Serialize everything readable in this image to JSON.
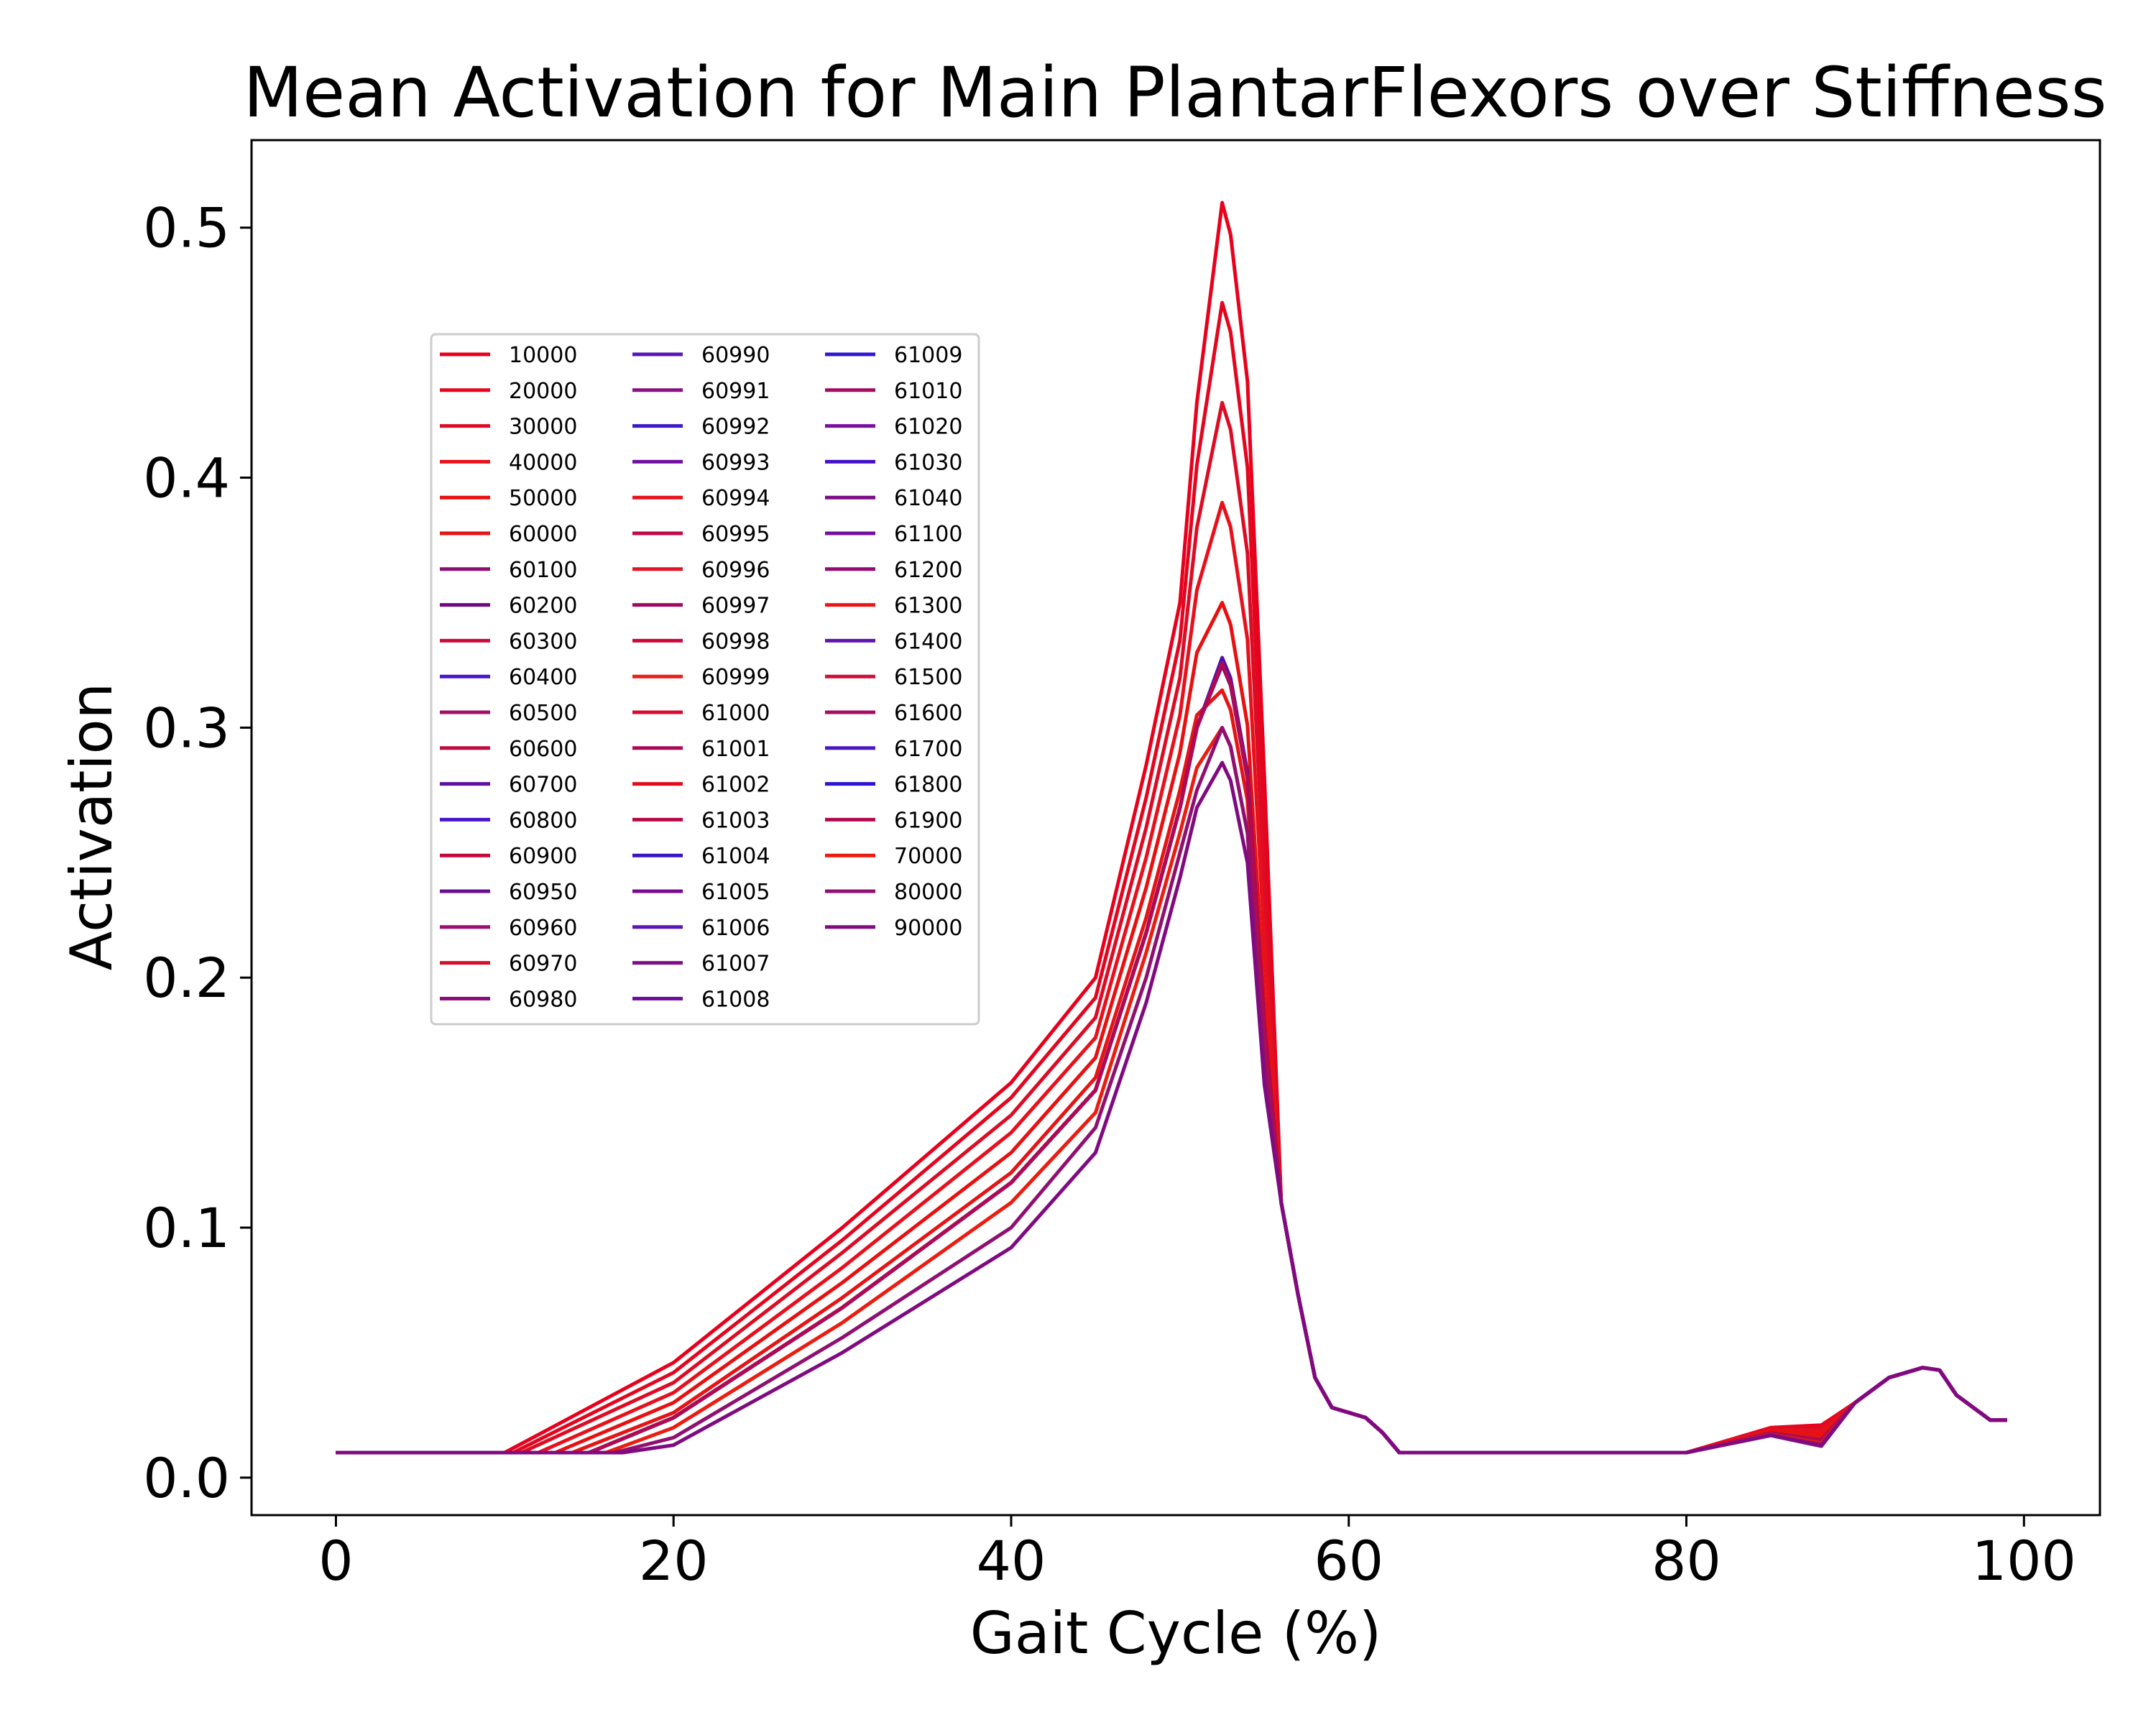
{
  "chart_data": {
    "type": "line",
    "title": "Mean Activation for Main PlantarFlexors over Stiffness",
    "xlabel": "Gait Cycle (%)",
    "ylabel": "Activation",
    "xlim": [
      -5,
      104.5
    ],
    "ylim": [
      -0.015,
      0.535
    ],
    "xticks": [
      "0",
      "20",
      "40",
      "60",
      "80",
      "100"
    ],
    "yticks": [
      "0.0",
      "0.1",
      "0.2",
      "0.3",
      "0.4",
      "0.5"
    ],
    "grid": false,
    "legend_position": "upper-left",
    "x": [
      0,
      10,
      15,
      20,
      30,
      40,
      45,
      48,
      50,
      51,
      52,
      52.5,
      53,
      54,
      55,
      56,
      57,
      58,
      59,
      60,
      61,
      62,
      63,
      64,
      65,
      80,
      85,
      88,
      90,
      92,
      94,
      95,
      96,
      98,
      99,
      99.5
    ],
    "common_tail": [
      0.15,
      0.11,
      0.073,
      0.04,
      0.028,
      0.026,
      0.024,
      0.018,
      0.01,
      0.01,
      0.01,
      0.01,
      0.011,
      0.016,
      0.03,
      0.04,
      0.044,
      0.043,
      0.033,
      0.023,
      0.023
    ],
    "series": [
      {
        "name": "10000",
        "color": "#e8001c",
        "rise_start": 10,
        "v20": 0.046,
        "v30": 0.1,
        "v40": 0.158,
        "v45": 0.2,
        "v48": 0.285,
        "v50": 0.35,
        "v51": 0.43,
        "peak": 0.51
      },
      {
        "name": "20000",
        "color": "#e3061f",
        "rise_start": 10.5,
        "v20": 0.042,
        "v30": 0.095,
        "v40": 0.152,
        "v45": 0.192,
        "v48": 0.272,
        "v50": 0.335,
        "v51": 0.405,
        "peak": 0.47
      },
      {
        "name": "30000",
        "color": "#dd0c25",
        "rise_start": 11,
        "v20": 0.038,
        "v30": 0.09,
        "v40": 0.145,
        "v45": 0.184,
        "v48": 0.26,
        "v50": 0.32,
        "v51": 0.38,
        "peak": 0.43
      },
      {
        "name": "40000",
        "color": "#e8101c",
        "rise_start": 12,
        "v20": 0.034,
        "v30": 0.084,
        "v40": 0.138,
        "v45": 0.176,
        "v48": 0.248,
        "v50": 0.305,
        "v51": 0.355,
        "peak": 0.39
      },
      {
        "name": "50000",
        "color": "#e81010",
        "rise_start": 13,
        "v20": 0.03,
        "v30": 0.078,
        "v40": 0.13,
        "v45": 0.168,
        "v48": 0.236,
        "v50": 0.29,
        "v51": 0.33,
        "peak": 0.35
      },
      {
        "name": "60000",
        "color": "#e61414",
        "rise_start": 14,
        "v20": 0.026,
        "v30": 0.072,
        "v40": 0.122,
        "v45": 0.16,
        "v48": 0.224,
        "v50": 0.275,
        "v51": 0.305,
        "peak": 0.315
      },
      {
        "name": "60100",
        "color": "#8a1070",
        "rise_start": 15,
        "v20": 0.024,
        "v30": 0.068,
        "v40": 0.118,
        "v45": 0.155,
        "v48": 0.218,
        "v50": 0.268,
        "v51": 0.3,
        "peak": 0.326
      },
      {
        "name": "60200",
        "color": "#700a80",
        "rise_start": 15,
        "v20": 0.024,
        "v30": 0.068,
        "v40": 0.118,
        "v45": 0.155,
        "v48": 0.218,
        "v50": 0.268,
        "v51": 0.3,
        "peak": 0.325
      },
      {
        "name": "60300",
        "color": "#cc0a3a",
        "rise_start": 15,
        "v20": 0.024,
        "v30": 0.068,
        "v40": 0.118,
        "v45": 0.155,
        "v48": 0.218,
        "v50": 0.268,
        "v51": 0.3,
        "peak": 0.327
      },
      {
        "name": "60400",
        "color": "#4a18c8",
        "rise_start": 15,
        "v20": 0.024,
        "v30": 0.068,
        "v40": 0.118,
        "v45": 0.155,
        "v48": 0.218,
        "v50": 0.268,
        "v51": 0.3,
        "peak": 0.326
      },
      {
        "name": "60500",
        "color": "#a01068",
        "rise_start": 15,
        "v20": 0.024,
        "v30": 0.068,
        "v40": 0.118,
        "v45": 0.155,
        "v48": 0.218,
        "v50": 0.268,
        "v51": 0.3,
        "peak": 0.327
      },
      {
        "name": "60600",
        "color": "#c00a40",
        "rise_start": 15,
        "v20": 0.024,
        "v30": 0.068,
        "v40": 0.118,
        "v45": 0.155,
        "v48": 0.218,
        "v50": 0.268,
        "v51": 0.3,
        "peak": 0.326
      },
      {
        "name": "60700",
        "color": "#6010a0",
        "rise_start": 15,
        "v20": 0.024,
        "v30": 0.068,
        "v40": 0.118,
        "v45": 0.155,
        "v48": 0.218,
        "v50": 0.268,
        "v51": 0.3,
        "peak": 0.328
      },
      {
        "name": "60800",
        "color": "#4814cc",
        "rise_start": 15,
        "v20": 0.024,
        "v30": 0.068,
        "v40": 0.118,
        "v45": 0.155,
        "v48": 0.218,
        "v50": 0.268,
        "v51": 0.3,
        "peak": 0.326
      },
      {
        "name": "60900",
        "color": "#c4083a",
        "rise_start": 15,
        "v20": 0.024,
        "v30": 0.068,
        "v40": 0.118,
        "v45": 0.155,
        "v48": 0.218,
        "v50": 0.268,
        "v51": 0.3,
        "peak": 0.327
      },
      {
        "name": "60950",
        "color": "#680c90",
        "rise_start": 15,
        "v20": 0.024,
        "v30": 0.068,
        "v40": 0.118,
        "v45": 0.155,
        "v48": 0.218,
        "v50": 0.268,
        "v51": 0.3,
        "peak": 0.326
      },
      {
        "name": "60960",
        "color": "#9a1070",
        "rise_start": 15,
        "v20": 0.024,
        "v30": 0.068,
        "v40": 0.118,
        "v45": 0.155,
        "v48": 0.218,
        "v50": 0.268,
        "v51": 0.3,
        "peak": 0.327
      },
      {
        "name": "60970",
        "color": "#d4102a",
        "rise_start": 15,
        "v20": 0.024,
        "v30": 0.068,
        "v40": 0.118,
        "v45": 0.155,
        "v48": 0.218,
        "v50": 0.268,
        "v51": 0.3,
        "peak": 0.326
      },
      {
        "name": "60980",
        "color": "#880a78",
        "rise_start": 15,
        "v20": 0.024,
        "v30": 0.068,
        "v40": 0.118,
        "v45": 0.155,
        "v48": 0.218,
        "v50": 0.268,
        "v51": 0.3,
        "peak": 0.327
      },
      {
        "name": "60990",
        "color": "#5a14b8",
        "rise_start": 15,
        "v20": 0.024,
        "v30": 0.068,
        "v40": 0.118,
        "v45": 0.155,
        "v48": 0.218,
        "v50": 0.268,
        "v51": 0.3,
        "peak": 0.326
      },
      {
        "name": "60991",
        "color": "#881080",
        "rise_start": 15,
        "v20": 0.024,
        "v30": 0.068,
        "v40": 0.118,
        "v45": 0.155,
        "v48": 0.218,
        "v50": 0.268,
        "v51": 0.3,
        "peak": 0.327
      },
      {
        "name": "60992",
        "color": "#3c18c8",
        "rise_start": 15,
        "v20": 0.024,
        "v30": 0.068,
        "v40": 0.118,
        "v45": 0.155,
        "v48": 0.218,
        "v50": 0.268,
        "v51": 0.3,
        "peak": 0.326
      },
      {
        "name": "60993",
        "color": "#7010a0",
        "rise_start": 15,
        "v20": 0.024,
        "v30": 0.068,
        "v40": 0.118,
        "v45": 0.155,
        "v48": 0.218,
        "v50": 0.268,
        "v51": 0.3,
        "peak": 0.327
      },
      {
        "name": "60994",
        "color": "#e8141c",
        "rise_start": 15,
        "v20": 0.024,
        "v30": 0.068,
        "v40": 0.118,
        "v45": 0.155,
        "v48": 0.218,
        "v50": 0.268,
        "v51": 0.3,
        "peak": 0.326
      },
      {
        "name": "60995",
        "color": "#c00a48",
        "rise_start": 15,
        "v20": 0.024,
        "v30": 0.068,
        "v40": 0.118,
        "v45": 0.155,
        "v48": 0.218,
        "v50": 0.268,
        "v51": 0.3,
        "peak": 0.327
      },
      {
        "name": "60996",
        "color": "#e01424",
        "rise_start": 15,
        "v20": 0.024,
        "v30": 0.068,
        "v40": 0.118,
        "v45": 0.155,
        "v48": 0.218,
        "v50": 0.268,
        "v51": 0.3,
        "peak": 0.326
      },
      {
        "name": "60997",
        "color": "#a00a60",
        "rise_start": 15,
        "v20": 0.024,
        "v30": 0.068,
        "v40": 0.118,
        "v45": 0.155,
        "v48": 0.218,
        "v50": 0.268,
        "v51": 0.3,
        "peak": 0.327
      },
      {
        "name": "60998",
        "color": "#cc0838",
        "rise_start": 15,
        "v20": 0.024,
        "v30": 0.068,
        "v40": 0.118,
        "v45": 0.155,
        "v48": 0.218,
        "v50": 0.268,
        "v51": 0.3,
        "peak": 0.326
      },
      {
        "name": "60999",
        "color": "#ec2018",
        "rise_start": 15,
        "v20": 0.024,
        "v30": 0.068,
        "v40": 0.118,
        "v45": 0.155,
        "v48": 0.218,
        "v50": 0.268,
        "v51": 0.3,
        "peak": 0.327
      },
      {
        "name": "61000",
        "color": "#d80c30",
        "rise_start": 15,
        "v20": 0.024,
        "v30": 0.068,
        "v40": 0.118,
        "v45": 0.155,
        "v48": 0.218,
        "v50": 0.268,
        "v51": 0.3,
        "peak": 0.326
      },
      {
        "name": "61001",
        "color": "#a80a58",
        "rise_start": 15,
        "v20": 0.024,
        "v30": 0.068,
        "v40": 0.118,
        "v45": 0.155,
        "v48": 0.218,
        "v50": 0.268,
        "v51": 0.3,
        "peak": 0.327
      },
      {
        "name": "61002",
        "color": "#e40c1c",
        "rise_start": 15,
        "v20": 0.024,
        "v30": 0.068,
        "v40": 0.118,
        "v45": 0.155,
        "v48": 0.218,
        "v50": 0.268,
        "v51": 0.3,
        "peak": 0.326
      },
      {
        "name": "61003",
        "color": "#b80848",
        "rise_start": 15,
        "v20": 0.024,
        "v30": 0.068,
        "v40": 0.118,
        "v45": 0.155,
        "v48": 0.218,
        "v50": 0.268,
        "v51": 0.3,
        "peak": 0.327
      },
      {
        "name": "61004",
        "color": "#3814c8",
        "rise_start": 15,
        "v20": 0.024,
        "v30": 0.068,
        "v40": 0.118,
        "v45": 0.155,
        "v48": 0.218,
        "v50": 0.268,
        "v51": 0.3,
        "peak": 0.326
      },
      {
        "name": "61005",
        "color": "#780c90",
        "rise_start": 15,
        "v20": 0.024,
        "v30": 0.068,
        "v40": 0.118,
        "v45": 0.155,
        "v48": 0.218,
        "v50": 0.268,
        "v51": 0.3,
        "peak": 0.327
      },
      {
        "name": "61006",
        "color": "#5818b4",
        "rise_start": 15,
        "v20": 0.024,
        "v30": 0.068,
        "v40": 0.118,
        "v45": 0.155,
        "v48": 0.218,
        "v50": 0.268,
        "v51": 0.3,
        "peak": 0.326
      },
      {
        "name": "61007",
        "color": "#800c88",
        "rise_start": 15,
        "v20": 0.024,
        "v30": 0.068,
        "v40": 0.118,
        "v45": 0.155,
        "v48": 0.218,
        "v50": 0.268,
        "v51": 0.3,
        "peak": 0.327
      },
      {
        "name": "61008",
        "color": "#6c0c98",
        "rise_start": 15,
        "v20": 0.024,
        "v30": 0.068,
        "v40": 0.118,
        "v45": 0.155,
        "v48": 0.218,
        "v50": 0.268,
        "v51": 0.3,
        "peak": 0.326
      },
      {
        "name": "61009",
        "color": "#3018d0",
        "rise_start": 15,
        "v20": 0.024,
        "v30": 0.068,
        "v40": 0.118,
        "v45": 0.155,
        "v48": 0.218,
        "v50": 0.268,
        "v51": 0.3,
        "peak": 0.327
      },
      {
        "name": "61010",
        "color": "#a40c60",
        "rise_start": 15,
        "v20": 0.024,
        "v30": 0.068,
        "v40": 0.118,
        "v45": 0.155,
        "v48": 0.218,
        "v50": 0.268,
        "v51": 0.3,
        "peak": 0.326
      },
      {
        "name": "61020",
        "color": "#7810a0",
        "rise_start": 15,
        "v20": 0.024,
        "v30": 0.068,
        "v40": 0.118,
        "v45": 0.155,
        "v48": 0.218,
        "v50": 0.268,
        "v51": 0.3,
        "peak": 0.327
      },
      {
        "name": "61030",
        "color": "#4410c8",
        "rise_start": 15,
        "v20": 0.024,
        "v30": 0.068,
        "v40": 0.118,
        "v45": 0.155,
        "v48": 0.218,
        "v50": 0.268,
        "v51": 0.3,
        "peak": 0.326
      },
      {
        "name": "61040",
        "color": "#7c0c88",
        "rise_start": 15,
        "v20": 0.024,
        "v30": 0.068,
        "v40": 0.118,
        "v45": 0.155,
        "v48": 0.218,
        "v50": 0.268,
        "v51": 0.3,
        "peak": 0.327
      },
      {
        "name": "61100",
        "color": "#7410a0",
        "rise_start": 15,
        "v20": 0.024,
        "v30": 0.068,
        "v40": 0.118,
        "v45": 0.155,
        "v48": 0.218,
        "v50": 0.268,
        "v51": 0.3,
        "peak": 0.326
      },
      {
        "name": "61200",
        "color": "#940c70",
        "rise_start": 15,
        "v20": 0.024,
        "v30": 0.068,
        "v40": 0.118,
        "v45": 0.155,
        "v48": 0.218,
        "v50": 0.268,
        "v51": 0.3,
        "peak": 0.327
      },
      {
        "name": "61300",
        "color": "#e81818",
        "rise_start": 15,
        "v20": 0.024,
        "v30": 0.068,
        "v40": 0.118,
        "v45": 0.155,
        "v48": 0.218,
        "v50": 0.268,
        "v51": 0.3,
        "peak": 0.326
      },
      {
        "name": "61400",
        "color": "#6014b0",
        "rise_start": 15,
        "v20": 0.024,
        "v30": 0.068,
        "v40": 0.118,
        "v45": 0.155,
        "v48": 0.218,
        "v50": 0.268,
        "v51": 0.3,
        "peak": 0.327
      },
      {
        "name": "61500",
        "color": "#d0103a",
        "rise_start": 15,
        "v20": 0.024,
        "v30": 0.068,
        "v40": 0.118,
        "v45": 0.155,
        "v48": 0.218,
        "v50": 0.268,
        "v51": 0.3,
        "peak": 0.326
      },
      {
        "name": "61600",
        "color": "#a80c60",
        "rise_start": 15,
        "v20": 0.024,
        "v30": 0.068,
        "v40": 0.118,
        "v45": 0.155,
        "v48": 0.218,
        "v50": 0.268,
        "v51": 0.3,
        "peak": 0.327
      },
      {
        "name": "61700",
        "color": "#4818c4",
        "rise_start": 15,
        "v20": 0.024,
        "v30": 0.068,
        "v40": 0.118,
        "v45": 0.155,
        "v48": 0.218,
        "v50": 0.268,
        "v51": 0.3,
        "peak": 0.326
      },
      {
        "name": "61800",
        "color": "#2c14d4",
        "rise_start": 15,
        "v20": 0.024,
        "v30": 0.068,
        "v40": 0.118,
        "v45": 0.155,
        "v48": 0.218,
        "v50": 0.268,
        "v51": 0.3,
        "peak": 0.327
      },
      {
        "name": "61900",
        "color": "#b00a50",
        "rise_start": 15,
        "v20": 0.024,
        "v30": 0.068,
        "v40": 0.118,
        "v45": 0.155,
        "v48": 0.218,
        "v50": 0.268,
        "v51": 0.3,
        "peak": 0.326
      },
      {
        "name": "70000",
        "color": "#ec1c10",
        "rise_start": 16,
        "v20": 0.02,
        "v30": 0.062,
        "v40": 0.11,
        "v45": 0.146,
        "v48": 0.21,
        "v50": 0.258,
        "v51": 0.284,
        "peak": 0.3
      },
      {
        "name": "80000",
        "color": "#901070",
        "rise_start": 16.5,
        "v20": 0.016,
        "v30": 0.056,
        "v40": 0.1,
        "v45": 0.14,
        "v48": 0.2,
        "v50": 0.25,
        "v51": 0.275,
        "peak": 0.3
      },
      {
        "name": "90000",
        "color": "#800a80",
        "rise_start": 17,
        "v20": 0.013,
        "v30": 0.05,
        "v40": 0.092,
        "v45": 0.13,
        "v48": 0.19,
        "v50": 0.24,
        "v51": 0.268,
        "peak": 0.286
      }
    ]
  }
}
